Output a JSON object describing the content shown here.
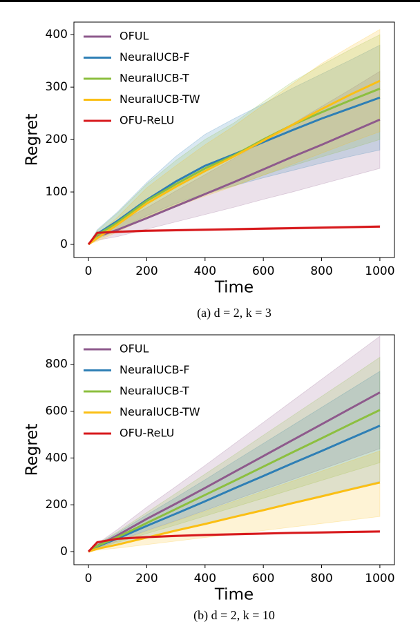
{
  "chart_data": [
    {
      "type": "line",
      "caption": "(a) d = 2, k = 3",
      "xlabel": "Time",
      "ylabel": "Regret",
      "legend": "upper left",
      "x": [
        0,
        30,
        100,
        200,
        300,
        400,
        500,
        600,
        700,
        800,
        900,
        1000
      ],
      "xlim": [
        -50,
        1050
      ],
      "xticks": [
        0,
        200,
        400,
        600,
        800,
        1000
      ],
      "ylim": [
        -25,
        424
      ],
      "yticks": [
        0,
        100,
        200,
        300,
        400
      ],
      "series": [
        {
          "name": "OFUL",
          "color": "#8e5a8c",
          "values": [
            0,
            15,
            28,
            50,
            73,
            96,
            119,
            143,
            167,
            190,
            214,
            238
          ],
          "lower": [
            0,
            8,
            15,
            29,
            43,
            57,
            71,
            86,
            100,
            115,
            130,
            145
          ],
          "upper": [
            0,
            22,
            40,
            70,
            102,
            133,
            164,
            197,
            230,
            263,
            296,
            330
          ]
        },
        {
          "name": "NeuralUCB-F",
          "color": "#2e7fb5",
          "values": [
            0,
            20,
            45,
            85,
            120,
            150,
            172,
            195,
            218,
            240,
            260,
            280
          ],
          "lower": [
            0,
            12,
            28,
            55,
            78,
            97,
            112,
            127,
            141,
            155,
            168,
            180
          ],
          "upper": [
            0,
            28,
            62,
            118,
            168,
            210,
            240,
            268,
            298,
            325,
            352,
            380
          ]
        },
        {
          "name": "NeuralUCB-T",
          "color": "#8cbf3f",
          "values": [
            0,
            18,
            42,
            83,
            115,
            145,
            170,
            200,
            228,
            252,
            275,
            297
          ],
          "lower": [
            0,
            10,
            26,
            52,
            75,
            95,
            112,
            132,
            150,
            167,
            183,
            200
          ],
          "upper": [
            0,
            26,
            60,
            115,
            160,
            200,
            232,
            272,
            310,
            342,
            372,
            400
          ]
        },
        {
          "name": "NeuralUCB-TW",
          "color": "#fbbf14",
          "values": [
            0,
            12,
            38,
            78,
            110,
            140,
            168,
            198,
            228,
            258,
            286,
            312
          ],
          "lower": [
            0,
            6,
            24,
            50,
            72,
            92,
            111,
            132,
            153,
            174,
            195,
            215
          ],
          "upper": [
            0,
            18,
            52,
            108,
            150,
            190,
            226,
            266,
            306,
            345,
            378,
            410
          ]
        },
        {
          "name": "OFU-ReLU",
          "color": "#d7191c",
          "values": [
            0,
            22,
            24,
            26,
            27,
            28,
            29,
            30,
            31,
            32,
            33,
            34
          ],
          "lower": [
            0,
            20,
            22,
            24,
            25,
            26,
            27,
            28,
            29,
            30,
            31,
            32
          ],
          "upper": [
            0,
            24,
            26,
            28,
            29,
            30,
            31,
            32,
            33,
            34,
            35,
            36
          ]
        }
      ]
    },
    {
      "type": "line",
      "caption": "(b) d = 2, k = 10",
      "xlabel": "Time",
      "ylabel": "Regret",
      "legend": "upper left",
      "x": [
        0,
        30,
        100,
        200,
        300,
        400,
        500,
        600,
        700,
        800,
        900,
        1000
      ],
      "xlim": [
        -50,
        1050
      ],
      "xticks": [
        0,
        200,
        400,
        600,
        800,
        1000
      ],
      "ylim": [
        -56,
        926
      ],
      "yticks": [
        0,
        200,
        400,
        600,
        800
      ],
      "series": [
        {
          "name": "OFUL",
          "color": "#8e5a8c",
          "values": [
            0,
            25,
            70,
            140,
            205,
            272,
            340,
            408,
            476,
            544,
            612,
            680
          ],
          "lower": [
            0,
            16,
            45,
            90,
            132,
            176,
            220,
            264,
            308,
            352,
            396,
            440
          ],
          "upper": [
            0,
            34,
            95,
            190,
            278,
            368,
            460,
            552,
            644,
            736,
            828,
            920
          ]
        },
        {
          "name": "NeuralUCB-F",
          "color": "#2e7fb5",
          "values": [
            0,
            22,
            56,
            110,
            162,
            215,
            270,
            323,
            377,
            430,
            484,
            538
          ],
          "lower": [
            0,
            12,
            31,
            61,
            90,
            120,
            150,
            180,
            210,
            240,
            270,
            300
          ],
          "upper": [
            0,
            32,
            80,
            157,
            231,
            307,
            385,
            462,
            539,
            616,
            693,
            770
          ]
        },
        {
          "name": "NeuralUCB-T",
          "color": "#8cbf3f",
          "values": [
            0,
            24,
            62,
            122,
            182,
            242,
            302,
            363,
            424,
            484,
            545,
            605
          ],
          "lower": [
            0,
            15,
            39,
            77,
            114,
            152,
            190,
            228,
            266,
            304,
            342,
            380
          ],
          "upper": [
            0,
            33,
            85,
            167,
            249,
            331,
            413,
            497,
            580,
            663,
            746,
            830
          ]
        },
        {
          "name": "NeuralUCB-TW",
          "color": "#fbbf14",
          "values": [
            0,
            12,
            30,
            60,
            90,
            118,
            148,
            177,
            207,
            236,
            266,
            295
          ],
          "lower": [
            0,
            6,
            15,
            30,
            45,
            60,
            75,
            90,
            105,
            120,
            135,
            150
          ],
          "upper": [
            0,
            18,
            44,
            87,
            130,
            172,
            215,
            258,
            301,
            344,
            387,
            430
          ]
        },
        {
          "name": "OFU-ReLU",
          "color": "#d7191c",
          "values": [
            0,
            40,
            55,
            62,
            67,
            71,
            74,
            77,
            80,
            82,
            84,
            86
          ],
          "lower": [
            0,
            36,
            51,
            58,
            63,
            67,
            70,
            73,
            76,
            78,
            80,
            82
          ],
          "upper": [
            0,
            44,
            59,
            66,
            71,
            75,
            78,
            81,
            84,
            86,
            88,
            90
          ]
        }
      ]
    }
  ]
}
